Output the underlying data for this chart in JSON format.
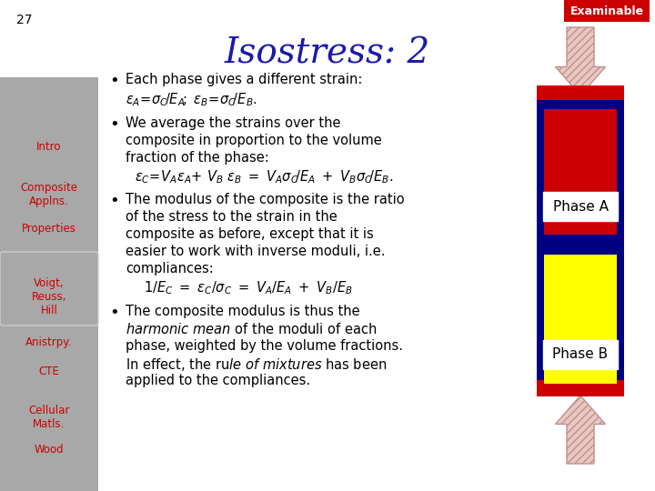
{
  "slide_number": "27",
  "examinable_label": "Examinable",
  "examinable_bg": "#cc0000",
  "title": "Isostress: 2",
  "title_color": "#1a1aaa",
  "background_color": "#ffffff",
  "sidebar_color": "#a8a8a8",
  "sidebar_items": [
    {
      "text": "Intro",
      "color": "#cc0000",
      "style": "normal"
    },
    {
      "text": "Composite\nApplns.",
      "color": "#cc0000",
      "style": "normal"
    },
    {
      "text": "Properties",
      "color": "#cc0000",
      "style": "normal"
    },
    {
      "text": "Voigt,\nReuss,\nHill",
      "color": "#cc0000",
      "style": "normal",
      "box": true
    },
    {
      "text": "Anistrpy.",
      "color": "#cc0000",
      "style": "normal"
    },
    {
      "text": "CTE",
      "color": "#cc0000",
      "style": "normal"
    },
    {
      "text": "Cellular\nMatls.",
      "color": "#cc0000",
      "style": "normal"
    },
    {
      "text": "Wood",
      "color": "#cc0000",
      "style": "normal"
    }
  ],
  "phase_a_color": "#cc0000",
  "phase_b_color": "#ffff00",
  "border_color": "#000080",
  "phase_a_label": "Phase A",
  "phase_b_label": "Phase B",
  "arrow_fill": "#e8c8c0",
  "arrow_edge": "#c09090"
}
